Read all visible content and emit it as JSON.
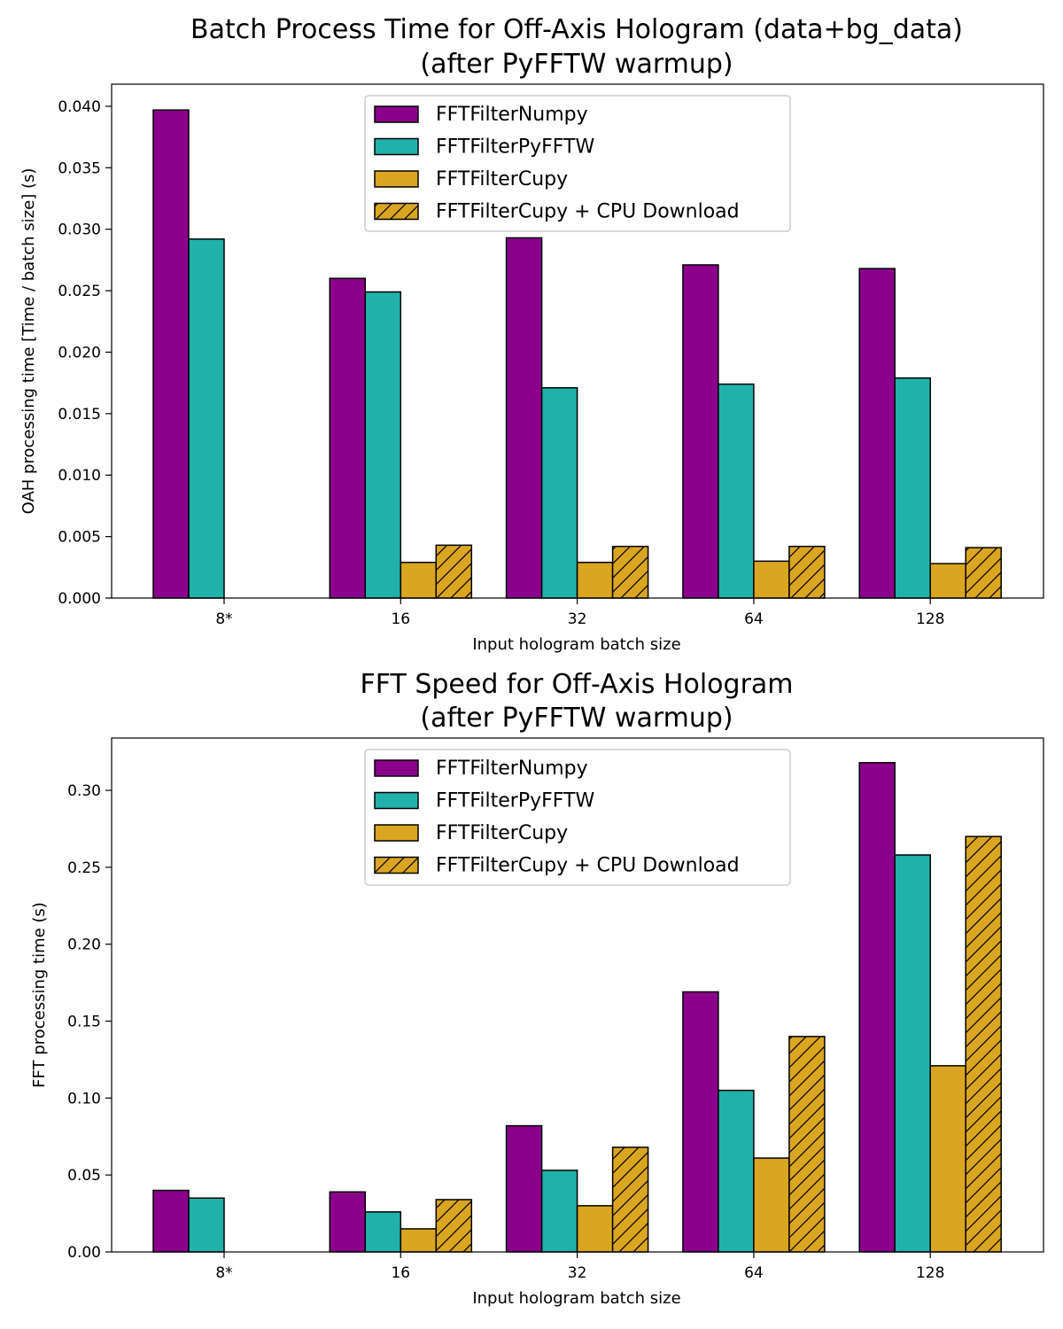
{
  "chart_data": [
    {
      "type": "bar",
      "title": "Batch Process Time for Off-Axis Hologram (data+bg_data)",
      "subtitle": "(after PyFFTW warmup)",
      "xlabel": "Input hologram batch size",
      "ylabel": "OAH processing time [Time / batch size] (s)",
      "categories": [
        "8*",
        "16",
        "32",
        "64",
        "128"
      ],
      "ylim": [
        0,
        0.0418
      ],
      "yticks": [
        "0.000",
        "0.005",
        "0.010",
        "0.015",
        "0.020",
        "0.025",
        "0.030",
        "0.035",
        "0.040"
      ],
      "legend_position": "top-center",
      "grid": false,
      "series": [
        {
          "name": "FFTFilterNumpy",
          "color": "#8B008B",
          "hatch": false,
          "values": [
            0.0397,
            0.026,
            0.0293,
            0.0271,
            0.0268
          ]
        },
        {
          "name": "FFTFilterPyFFTW",
          "color": "#20B2AA",
          "hatch": false,
          "values": [
            0.0292,
            0.0249,
            0.0171,
            0.0174,
            0.0179
          ]
        },
        {
          "name": "FFTFilterCupy",
          "color": "#DAA520",
          "hatch": false,
          "values": [
            0.0,
            0.0029,
            0.0029,
            0.003,
            0.0028
          ]
        },
        {
          "name": "FFTFilterCupy + CPU Download",
          "color": "#DAA520",
          "hatch": true,
          "values": [
            0.0,
            0.0043,
            0.0042,
            0.0042,
            0.0041
          ]
        }
      ]
    },
    {
      "type": "bar",
      "title": "FFT Speed for Off-Axis Hologram",
      "subtitle": "(after PyFFTW warmup)",
      "xlabel": "Input hologram batch size",
      "ylabel": "FFT processing time (s)",
      "categories": [
        "8*",
        "16",
        "32",
        "64",
        "128"
      ],
      "ylim": [
        0,
        0.334
      ],
      "yticks": [
        "0.00",
        "0.05",
        "0.10",
        "0.15",
        "0.20",
        "0.25",
        "0.30"
      ],
      "legend_position": "top-center",
      "grid": false,
      "series": [
        {
          "name": "FFTFilterNumpy",
          "color": "#8B008B",
          "hatch": false,
          "values": [
            0.04,
            0.039,
            0.082,
            0.169,
            0.318
          ]
        },
        {
          "name": "FFTFilterPyFFTW",
          "color": "#20B2AA",
          "hatch": false,
          "values": [
            0.035,
            0.026,
            0.053,
            0.105,
            0.258
          ]
        },
        {
          "name": "FFTFilterCupy",
          "color": "#DAA520",
          "hatch": false,
          "values": [
            0.0,
            0.015,
            0.03,
            0.061,
            0.121
          ]
        },
        {
          "name": "FFTFilterCupy + CPU Download",
          "color": "#DAA520",
          "hatch": true,
          "values": [
            0.0,
            0.034,
            0.068,
            0.14,
            0.27
          ]
        }
      ]
    }
  ]
}
